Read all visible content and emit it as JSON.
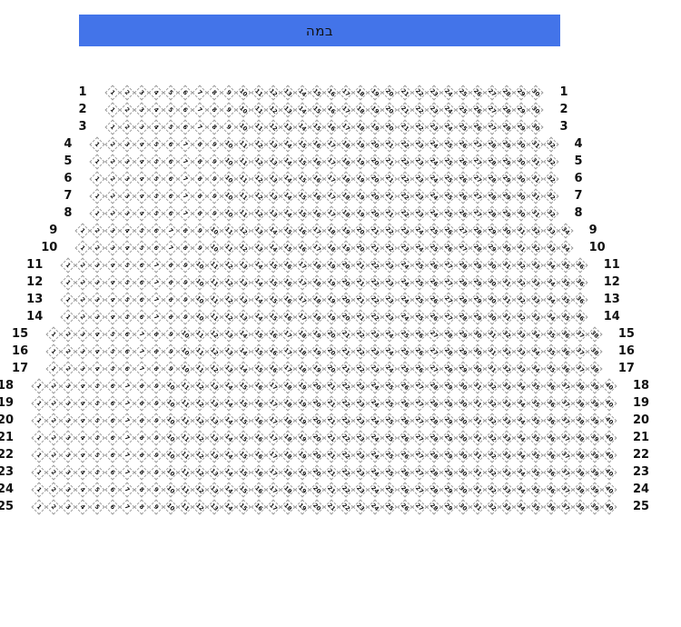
{
  "stage": {
    "label": "במה",
    "background_color": "#4374e9",
    "text_color": "#111111"
  },
  "seat_map": {
    "seat_border_color": "#9a9a9a",
    "seat_number_color": "#111111",
    "row_label_color": "#111111",
    "rows": [
      {
        "row": 1,
        "seat_from": 1,
        "seat_to": 30
      },
      {
        "row": 2,
        "seat_from": 1,
        "seat_to": 30
      },
      {
        "row": 3,
        "seat_from": 1,
        "seat_to": 30
      },
      {
        "row": 4,
        "seat_from": 1,
        "seat_to": 32
      },
      {
        "row": 5,
        "seat_from": 1,
        "seat_to": 32
      },
      {
        "row": 6,
        "seat_from": 1,
        "seat_to": 32
      },
      {
        "row": 7,
        "seat_from": 1,
        "seat_to": 32
      },
      {
        "row": 8,
        "seat_from": 1,
        "seat_to": 32
      },
      {
        "row": 9,
        "seat_from": 1,
        "seat_to": 34
      },
      {
        "row": 10,
        "seat_from": 1,
        "seat_to": 34
      },
      {
        "row": 11,
        "seat_from": 1,
        "seat_to": 36
      },
      {
        "row": 12,
        "seat_from": 1,
        "seat_to": 36
      },
      {
        "row": 13,
        "seat_from": 1,
        "seat_to": 36
      },
      {
        "row": 14,
        "seat_from": 1,
        "seat_to": 36
      },
      {
        "row": 15,
        "seat_from": 1,
        "seat_to": 38
      },
      {
        "row": 16,
        "seat_from": 1,
        "seat_to": 38
      },
      {
        "row": 17,
        "seat_from": 1,
        "seat_to": 38
      },
      {
        "row": 18,
        "seat_from": 1,
        "seat_to": 40
      },
      {
        "row": 19,
        "seat_from": 1,
        "seat_to": 40
      },
      {
        "row": 20,
        "seat_from": 1,
        "seat_to": 40
      },
      {
        "row": 21,
        "seat_from": 1,
        "seat_to": 40
      },
      {
        "row": 22,
        "seat_from": 1,
        "seat_to": 40
      },
      {
        "row": 23,
        "seat_from": 1,
        "seat_to": 40
      },
      {
        "row": 24,
        "seat_from": 1,
        "seat_to": 40
      },
      {
        "row": 25,
        "seat_from": 1,
        "seat_to": 40
      }
    ]
  }
}
